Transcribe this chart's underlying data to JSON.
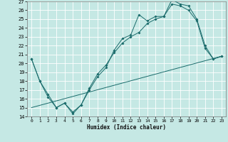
{
  "xlabel": "Humidex (Indice chaleur)",
  "xlim": [
    -0.5,
    23.5
  ],
  "ylim": [
    14,
    27
  ],
  "xticks": [
    0,
    1,
    2,
    3,
    4,
    5,
    6,
    7,
    8,
    9,
    10,
    11,
    12,
    13,
    14,
    15,
    16,
    17,
    18,
    19,
    20,
    21,
    22,
    23
  ],
  "yticks": [
    14,
    15,
    16,
    17,
    18,
    19,
    20,
    21,
    22,
    23,
    24,
    25,
    26,
    27
  ],
  "bg_color": "#c5e8e4",
  "grid_color": "#ffffff",
  "line_color": "#1a6b6b",
  "line1_x": [
    0,
    1,
    2,
    3,
    4,
    5,
    6,
    7,
    8,
    9,
    10,
    11,
    12,
    13,
    14,
    15,
    16,
    17,
    18,
    19,
    20,
    21,
    22,
    23
  ],
  "line1_y": [
    20.5,
    18.0,
    16.5,
    15.0,
    15.5,
    14.5,
    15.3,
    17.0,
    18.5,
    19.5,
    21.5,
    22.8,
    23.2,
    25.5,
    24.8,
    25.3,
    25.3,
    27.2,
    26.7,
    26.5,
    25.0,
    22.0,
    20.5,
    20.8
  ],
  "line2_x": [
    0,
    1,
    2,
    3,
    4,
    5,
    6,
    7,
    8,
    9,
    10,
    11,
    12,
    13,
    14,
    15,
    16,
    17,
    18,
    19,
    20,
    21,
    22,
    23
  ],
  "line2_y": [
    20.5,
    18.0,
    16.2,
    15.0,
    15.5,
    14.3,
    15.3,
    17.2,
    18.8,
    19.8,
    21.2,
    22.3,
    23.0,
    23.5,
    24.5,
    25.0,
    25.3,
    26.7,
    26.5,
    26.0,
    24.8,
    21.7,
    20.5,
    20.8
  ],
  "line3_x": [
    0,
    23
  ],
  "line3_y": [
    15.0,
    20.8
  ],
  "marker": "D",
  "markersize": 2.0,
  "linewidth": 0.7
}
